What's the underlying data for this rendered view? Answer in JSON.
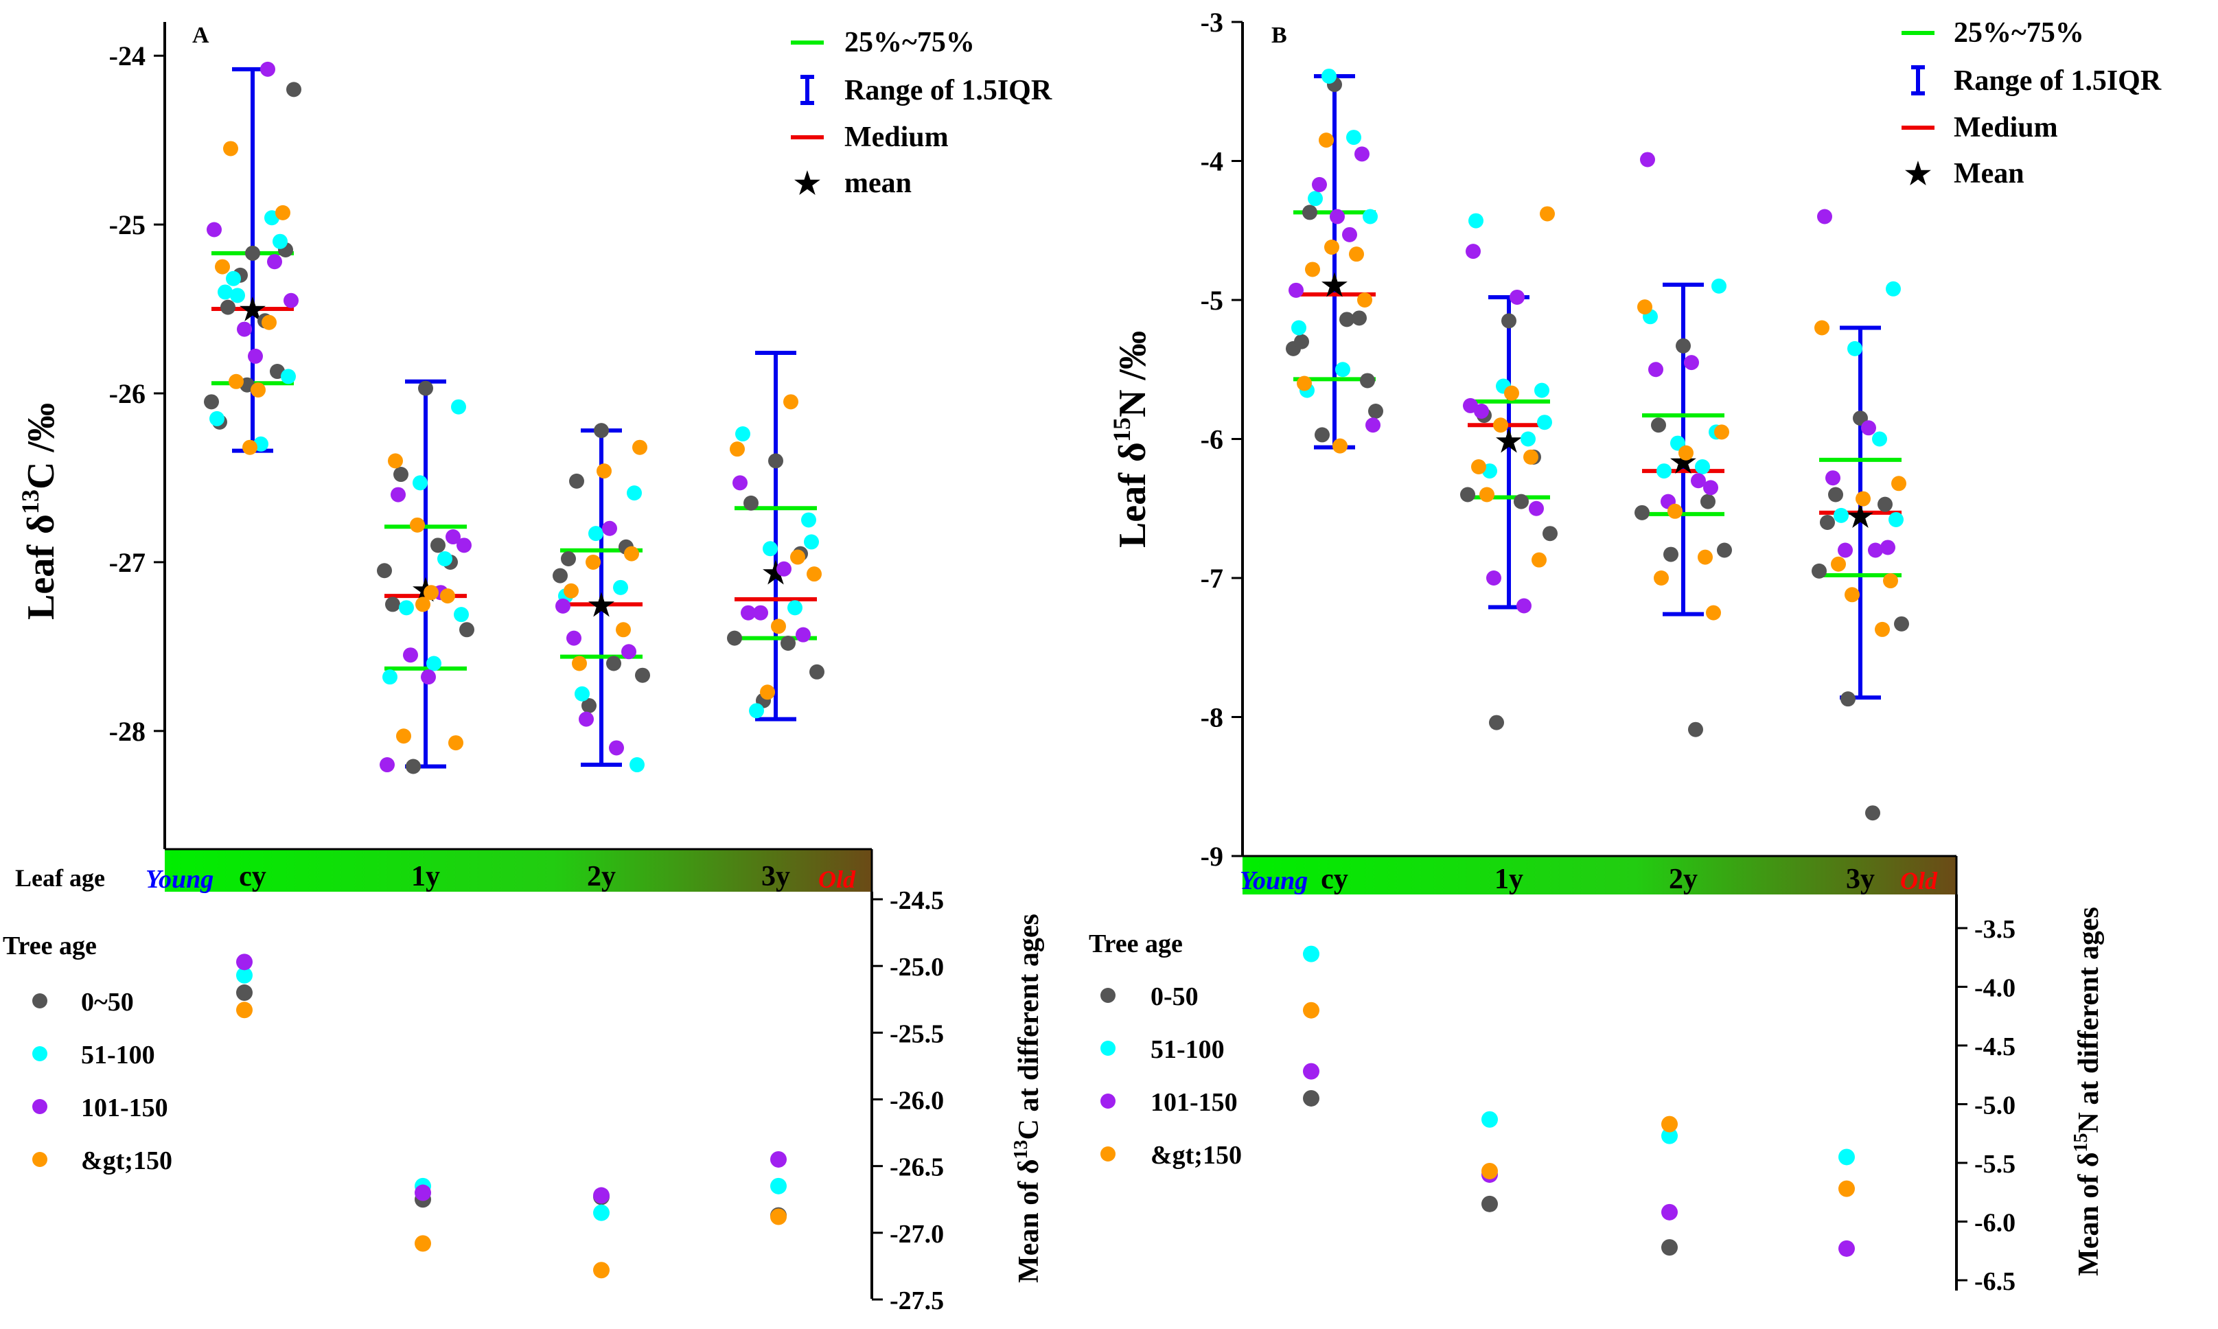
{
  "chart_data": [
    {
      "panel": "A",
      "type": "box-scatter",
      "ylabel_main": "Leaf",
      "ylabel_sym": "δ",
      "ylabel_iso": "13",
      "ylabel_elem": "C /‰",
      "ylim": [
        -28.7,
        -23.8
      ],
      "yticks": [
        -24,
        -25,
        -26,
        -27,
        -28
      ],
      "ytick_labels": [
        "-24",
        "-25",
        "-26",
        "-27",
        "-28"
      ],
      "categories": [
        "cy",
        "1y",
        "2y",
        "3y"
      ],
      "legend": {
        "iqr": "25%~75%",
        "range": "Range of 1.5IQR",
        "median": "Medium",
        "mean": "mean"
      },
      "boxes": [
        {
          "whisker_top": -24.08,
          "whisker_bottom": -26.34,
          "q3": -25.17,
          "q1": -25.94,
          "median": -25.5,
          "mean": -25.5
        },
        {
          "whisker_top": -25.93,
          "whisker_bottom": -28.21,
          "q3": -26.79,
          "q1": -27.63,
          "median": -27.2,
          "mean": -27.16
        },
        {
          "whisker_top": -26.22,
          "whisker_bottom": -28.2,
          "q3": -26.93,
          "q1": -27.56,
          "median": -27.25,
          "mean": -27.25
        },
        {
          "whisker_top": -25.76,
          "whisker_bottom": -27.93,
          "q3": -26.68,
          "q1": -27.45,
          "median": -27.22,
          "mean": -27.06
        }
      ],
      "points": [
        [
          [
            -25.17,
            0
          ],
          [
            -25.49,
            0
          ],
          [
            -25.87,
            0
          ],
          [
            -26.05,
            0
          ],
          [
            -24.2,
            0
          ],
          [
            -25.3,
            0
          ],
          [
            -25.57,
            0
          ],
          [
            -26.17,
            0
          ],
          [
            -25.15,
            0
          ],
          [
            -25.95,
            0
          ],
          [
            -24.96,
            1
          ],
          [
            -25.32,
            1
          ],
          [
            -25.9,
            1
          ],
          [
            -26.15,
            1
          ],
          [
            -26.3,
            1
          ],
          [
            -25.4,
            1
          ],
          [
            -25.1,
            1
          ],
          [
            -25.42,
            1
          ],
          [
            -24.08,
            2
          ],
          [
            -25.03,
            2
          ],
          [
            -25.45,
            2
          ],
          [
            -25.78,
            2
          ],
          [
            -25.62,
            2
          ],
          [
            -25.22,
            2
          ],
          [
            -24.55,
            3
          ],
          [
            -24.93,
            3
          ],
          [
            -25.25,
            3
          ],
          [
            -25.98,
            3
          ],
          [
            -26.32,
            3
          ],
          [
            -25.58,
            3
          ],
          [
            -25.93,
            3
          ]
        ],
        [
          [
            -25.97,
            0
          ],
          [
            -26.48,
            0
          ],
          [
            -27.0,
            0
          ],
          [
            -27.05,
            0
          ],
          [
            -27.4,
            0
          ],
          [
            -28.21,
            0
          ],
          [
            -26.9,
            0
          ],
          [
            -27.25,
            0
          ],
          [
            -26.08,
            1
          ],
          [
            -26.53,
            1
          ],
          [
            -26.98,
            1
          ],
          [
            -27.27,
            1
          ],
          [
            -27.31,
            1
          ],
          [
            -27.68,
            1
          ],
          [
            -27.6,
            1
          ],
          [
            -26.6,
            2
          ],
          [
            -26.85,
            2
          ],
          [
            -27.55,
            2
          ],
          [
            -27.18,
            2
          ],
          [
            -28.2,
            2
          ],
          [
            -26.9,
            2
          ],
          [
            -27.68,
            2
          ],
          [
            -26.78,
            3
          ],
          [
            -27.2,
            3
          ],
          [
            -28.03,
            3
          ],
          [
            -28.07,
            3
          ],
          [
            -26.4,
            3
          ],
          [
            -27.18,
            3
          ],
          [
            -27.25,
            3
          ]
        ],
        [
          [
            -26.22,
            0
          ],
          [
            -26.52,
            0
          ],
          [
            -26.91,
            0
          ],
          [
            -27.08,
            0
          ],
          [
            -27.67,
            0
          ],
          [
            -27.85,
            0
          ],
          [
            -27.6,
            0
          ],
          [
            -26.98,
            0
          ],
          [
            -26.59,
            1
          ],
          [
            -26.83,
            1
          ],
          [
            -27.15,
            1
          ],
          [
            -27.78,
            1
          ],
          [
            -28.2,
            1
          ],
          [
            -27.2,
            1
          ],
          [
            -26.8,
            2
          ],
          [
            -27.45,
            2
          ],
          [
            -27.53,
            2
          ],
          [
            -27.93,
            2
          ],
          [
            -28.1,
            2
          ],
          [
            -27.26,
            2
          ],
          [
            -26.32,
            3
          ],
          [
            -26.46,
            3
          ],
          [
            -27.0,
            3
          ],
          [
            -27.4,
            3
          ],
          [
            -27.6,
            3
          ],
          [
            -26.95,
            3
          ],
          [
            -27.17,
            3
          ]
        ],
        [
          [
            -26.4,
            0
          ],
          [
            -26.65,
            0
          ],
          [
            -26.95,
            0
          ],
          [
            -27.45,
            0
          ],
          [
            -27.65,
            0
          ],
          [
            -27.82,
            0
          ],
          [
            -27.48,
            0
          ],
          [
            -26.24,
            1
          ],
          [
            -26.75,
            1
          ],
          [
            -26.92,
            1
          ],
          [
            -27.27,
            1
          ],
          [
            -27.88,
            1
          ],
          [
            -26.88,
            1
          ],
          [
            -26.53,
            2
          ],
          [
            -27.04,
            2
          ],
          [
            -27.3,
            2
          ],
          [
            -27.43,
            2
          ],
          [
            -27.3,
            2
          ],
          [
            -26.05,
            3
          ],
          [
            -26.33,
            3
          ],
          [
            -27.07,
            3
          ],
          [
            -27.38,
            3
          ],
          [
            -27.77,
            3
          ],
          [
            -26.97,
            3
          ]
        ]
      ],
      "age_means": {
        "axis_label_pre": "Mean of δ",
        "axis_label_iso": "13",
        "axis_label_post": "C at different ages",
        "ylim": [
          -27.5,
          -24.5
        ],
        "yticks": [
          -24.5,
          -25.0,
          -25.5,
          -26.0,
          -26.5,
          -27.0,
          -27.5
        ],
        "ytick_labels": [
          "-24.5",
          "-25.0",
          "-25.5",
          "-26.0",
          "-26.5",
          "-27.0",
          "-27.5"
        ],
        "series": [
          {
            "name": "0~50",
            "values": [
              -25.2,
              -26.75,
              -26.73,
              -26.87
            ]
          },
          {
            "name": "51-100",
            "values": [
              -25.07,
              -26.65,
              -26.85,
              -26.65
            ]
          },
          {
            "name": "101-150",
            "values": [
              -24.97,
              -26.7,
              -26.72,
              -26.45
            ]
          },
          {
            "name": "&gt;150",
            "values": [
              -25.33,
              -27.08,
              -27.28,
              -26.88
            ]
          }
        ]
      }
    },
    {
      "panel": "B",
      "type": "box-scatter",
      "ylabel_main": "Leaf",
      "ylabel_sym": "δ",
      "ylabel_iso": "15",
      "ylabel_elem": "N /‰",
      "ylim": [
        -9,
        -3
      ],
      "yticks": [
        -3,
        -4,
        -5,
        -6,
        -7,
        -8,
        -9
      ],
      "ytick_labels": [
        "-3",
        "-4",
        "-5",
        "-6",
        "-7",
        "-8",
        "-9"
      ],
      "categories": [
        "cy",
        "1y",
        "2y",
        "3y"
      ],
      "legend": {
        "iqr": "25%~75%",
        "range": "Range of 1.5IQR",
        "median": "Medium",
        "mean": "Mean"
      },
      "boxes": [
        {
          "whisker_top": -3.39,
          "whisker_bottom": -6.06,
          "q3": -4.37,
          "q1": -5.57,
          "median": -4.96,
          "mean": -4.89
        },
        {
          "whisker_top": -4.98,
          "whisker_bottom": -7.21,
          "q3": -5.73,
          "q1": -6.42,
          "median": -5.9,
          "mean": -6.01
        },
        {
          "whisker_top": -4.89,
          "whisker_bottom": -7.26,
          "q3": -5.83,
          "q1": -6.54,
          "median": -6.23,
          "mean": -6.16
        },
        {
          "whisker_top": -5.2,
          "whisker_bottom": -7.86,
          "q3": -6.15,
          "q1": -6.98,
          "median": -6.53,
          "mean": -6.55
        }
      ],
      "points": [
        [
          [
            -3.45,
            0
          ],
          [
            -4.37,
            0
          ],
          [
            -5.13,
            0
          ],
          [
            -5.35,
            0
          ],
          [
            -5.8,
            0
          ],
          [
            -5.97,
            0
          ],
          [
            -5.14,
            0
          ],
          [
            -5.3,
            0
          ],
          [
            -5.58,
            0
          ],
          [
            -3.39,
            1
          ],
          [
            -3.83,
            1
          ],
          [
            -4.27,
            1
          ],
          [
            -4.4,
            1
          ],
          [
            -5.2,
            1
          ],
          [
            -5.5,
            1
          ],
          [
            -5.65,
            1
          ],
          [
            -3.95,
            2
          ],
          [
            -4.17,
            2
          ],
          [
            -4.53,
            2
          ],
          [
            -4.93,
            2
          ],
          [
            -5.9,
            2
          ],
          [
            -4.4,
            2
          ],
          [
            -3.85,
            3
          ],
          [
            -4.67,
            3
          ],
          [
            -4.78,
            3
          ],
          [
            -5.0,
            3
          ],
          [
            -5.6,
            3
          ],
          [
            -6.05,
            3
          ],
          [
            -4.62,
            3
          ]
        ],
        [
          [
            -5.15,
            0
          ],
          [
            -5.83,
            0
          ],
          [
            -6.13,
            0
          ],
          [
            -6.4,
            0
          ],
          [
            -6.68,
            0
          ],
          [
            -8.04,
            0
          ],
          [
            -6.45,
            0
          ],
          [
            -4.43,
            1
          ],
          [
            -5.65,
            1
          ],
          [
            -5.62,
            1
          ],
          [
            -6.0,
            1
          ],
          [
            -6.23,
            1
          ],
          [
            -5.88,
            1
          ],
          [
            -4.65,
            2
          ],
          [
            -4.98,
            2
          ],
          [
            -5.8,
            2
          ],
          [
            -6.5,
            2
          ],
          [
            -7.0,
            2
          ],
          [
            -7.2,
            2
          ],
          [
            -5.76,
            2
          ],
          [
            -4.38,
            3
          ],
          [
            -5.67,
            3
          ],
          [
            -5.9,
            3
          ],
          [
            -6.13,
            3
          ],
          [
            -6.4,
            3
          ],
          [
            -6.87,
            3
          ],
          [
            -6.2,
            3
          ]
        ],
        [
          [
            -5.33,
            0
          ],
          [
            -5.9,
            0
          ],
          [
            -6.45,
            0
          ],
          [
            -6.53,
            0
          ],
          [
            -6.8,
            0
          ],
          [
            -6.83,
            0
          ],
          [
            -8.09,
            0
          ],
          [
            -5.12,
            1
          ],
          [
            -5.95,
            1
          ],
          [
            -6.03,
            1
          ],
          [
            -6.2,
            1
          ],
          [
            -6.23,
            1
          ],
          [
            -4.9,
            1
          ],
          [
            -3.99,
            2
          ],
          [
            -5.45,
            2
          ],
          [
            -5.5,
            2
          ],
          [
            -6.35,
            2
          ],
          [
            -6.45,
            2
          ],
          [
            -6.3,
            2
          ],
          [
            -5.05,
            3
          ],
          [
            -5.95,
            3
          ],
          [
            -6.1,
            3
          ],
          [
            -6.52,
            3
          ],
          [
            -6.85,
            3
          ],
          [
            -7.0,
            3
          ],
          [
            -7.25,
            3
          ]
        ],
        [
          [
            -5.85,
            0
          ],
          [
            -6.4,
            0
          ],
          [
            -6.47,
            0
          ],
          [
            -6.95,
            0
          ],
          [
            -7.33,
            0
          ],
          [
            -7.87,
            0
          ],
          [
            -8.69,
            0
          ],
          [
            -6.6,
            0
          ],
          [
            -4.92,
            1
          ],
          [
            -5.35,
            1
          ],
          [
            -6.0,
            1
          ],
          [
            -6.55,
            1
          ],
          [
            -6.58,
            1
          ],
          [
            -4.4,
            2
          ],
          [
            -5.92,
            2
          ],
          [
            -6.28,
            2
          ],
          [
            -6.78,
            2
          ],
          [
            -6.8,
            2
          ],
          [
            -6.8,
            2
          ],
          [
            -5.2,
            3
          ],
          [
            -6.32,
            3
          ],
          [
            -6.43,
            3
          ],
          [
            -7.12,
            3
          ],
          [
            -7.37,
            3
          ],
          [
            -6.9,
            3
          ],
          [
            -7.02,
            3
          ]
        ]
      ],
      "age_means": {
        "axis_label_pre": "Mean of δ",
        "axis_label_iso": "15",
        "axis_label_post": "N at different ages",
        "ylim": [
          -6.5,
          -3.5
        ],
        "yticks": [
          -3.5,
          -4.0,
          -4.5,
          -5.0,
          -5.5,
          -6.0,
          -6.5
        ],
        "ytick_labels": [
          "-3.5",
          "-4.0",
          "-4.5",
          "-5.0",
          "-5.5",
          "-6.0",
          "-6.5"
        ],
        "series": [
          {
            "name": "0-50",
            "values": [
              -4.95,
              -5.85,
              -6.22,
              null
            ]
          },
          {
            "name": "51-100",
            "values": [
              -3.72,
              -5.13,
              -5.27,
              -5.45
            ]
          },
          {
            "name": "101-150",
            "values": [
              -4.72,
              -5.6,
              -5.92,
              -6.23
            ]
          },
          {
            "name": "&gt;150",
            "values": [
              -4.2,
              -5.57,
              -5.17,
              -5.72
            ]
          }
        ]
      }
    }
  ],
  "labels": {
    "leaf_age": "Leaf age",
    "tree_age": "Tree age",
    "young": "Young",
    "old": "Old"
  },
  "colors": {
    "series": [
      "#555555",
      "#00ffff",
      "#a020f0",
      "#ff9900"
    ],
    "iqr": "#00ee00",
    "range": "#0000ee",
    "median": "#ee0000",
    "mean": "#000000",
    "young": "#0000ff",
    "old": "#ff0000"
  }
}
